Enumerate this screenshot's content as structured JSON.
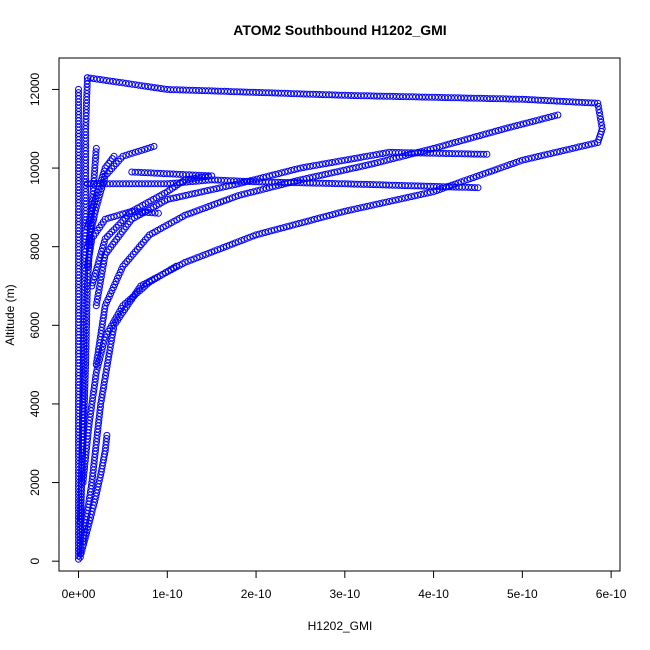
{
  "chart_data": {
    "type": "scatter",
    "title": "ATOM2 Southbound H1202_GMI",
    "xlabel": "H1202_GMI",
    "ylabel": "Altitude (m)",
    "xlim": [
      -2.2e-11,
      6.1e-10
    ],
    "ylim": [
      -250,
      12800
    ],
    "x_ticks": [
      0,
      1e-10,
      2e-10,
      3e-10,
      4e-10,
      5e-10,
      6e-10
    ],
    "x_tick_labels": [
      "0e+00",
      "1e-10",
      "2e-10",
      "3e-10",
      "4e-10",
      "5e-10",
      "6e-10"
    ],
    "y_ticks": [
      0,
      2000,
      4000,
      6000,
      8000,
      10000,
      12000
    ],
    "y_tick_labels": [
      "0",
      "2000",
      "4000",
      "6000",
      "8000",
      "10000",
      "12000"
    ],
    "marker": "open-circle",
    "series": [
      {
        "color": "#0000ff",
        "paths": [
          [
            [
              0,
              50
            ],
            [
              0,
              2000
            ],
            [
              0,
              4000
            ],
            [
              0,
              6000
            ],
            [
              0,
              8000
            ],
            [
              0,
              10000
            ],
            [
              0,
              12000
            ]
          ],
          [
            [
              2e-12,
              100
            ],
            [
              4e-12,
              3000
            ],
            [
              6e-12,
              6000
            ],
            [
              8e-12,
              9000
            ],
            [
              8e-12,
              11000
            ],
            [
              1e-11,
              12300
            ]
          ],
          [
            [
              1e-11,
              12300
            ],
            [
              1e-10,
              12000
            ],
            [
              3e-10,
              11850
            ],
            [
              5e-10,
              11750
            ],
            [
              5.85e-10,
              11650
            ],
            [
              5.9e-10,
              11000
            ],
            [
              5.85e-10,
              10650
            ],
            [
              5e-10,
              10200
            ],
            [
              4e-10,
              9400
            ],
            [
              3e-10,
              8900
            ],
            [
              2e-10,
              8300
            ],
            [
              1.2e-10,
              7600
            ],
            [
              7e-11,
              7000
            ],
            [
              4e-11,
              6000
            ],
            [
              2.5e-11,
              4000
            ],
            [
              1.5e-11,
              2000
            ],
            [
              5e-12,
              500
            ]
          ],
          [
            [
              5.4e-10,
              11350
            ],
            [
              4.8e-10,
              11000
            ],
            [
              4e-10,
              10500
            ],
            [
              3.3e-10,
              10100
            ],
            [
              2.5e-10,
              9700
            ],
            [
              1.8e-10,
              9300
            ],
            [
              1.2e-10,
              8800
            ],
            [
              8e-11,
              8300
            ],
            [
              5e-11,
              7500
            ],
            [
              3e-11,
              6500
            ],
            [
              2e-11,
              5000
            ]
          ],
          [
            [
              4.6e-10,
              10350
            ],
            [
              3.5e-10,
              10400
            ],
            [
              2.5e-10,
              10000
            ],
            [
              1.8e-10,
              9600
            ],
            [
              1e-10,
              9200
            ],
            [
              6e-11,
              8700
            ],
            [
              3e-11,
              7800
            ],
            [
              2e-11,
              6500
            ]
          ],
          [
            [
              4.5e-10,
              9500
            ],
            [
              3e-10,
              9600
            ],
            [
              2e-10,
              9650
            ],
            [
              1.5e-10,
              9700
            ],
            [
              1e-10,
              9600
            ],
            [
              5e-11,
              9600
            ],
            [
              1e-11,
              9600
            ]
          ],
          [
            [
              6e-11,
              9900
            ],
            [
              1.5e-10,
              9800
            ],
            [
              1.2e-10,
              9700
            ],
            [
              1e-10,
              9400
            ],
            [
              6e-11,
              8900
            ],
            [
              3e-11,
              8200
            ],
            [
              1.5e-11,
              7000
            ]
          ],
          [
            [
              9e-11,
              8850
            ],
            [
              6e-11,
              8900
            ],
            [
              3e-11,
              8700
            ],
            [
              1.5e-11,
              8200
            ],
            [
              1e-11,
              7500
            ]
          ],
          [
            [
              8.5e-11,
              10550
            ],
            [
              5e-11,
              10300
            ],
            [
              3e-11,
              9800
            ],
            [
              2e-11,
              9000
            ],
            [
              1e-11,
              8000
            ]
          ],
          [
            [
              4e-11,
              10300
            ],
            [
              3e-11,
              10000
            ],
            [
              2e-11,
              9300
            ],
            [
              1e-11,
              8500
            ]
          ],
          [
            [
              1.1e-10,
              7500
            ],
            [
              8e-11,
              7100
            ],
            [
              5e-11,
              6500
            ],
            [
              3e-11,
              5700
            ],
            [
              2e-11,
              4800
            ],
            [
              1.2e-11,
              3500
            ],
            [
              5e-12,
              2000
            ]
          ],
          [
            [
              2e-11,
              10500
            ],
            [
              1.5e-11,
              9000
            ],
            [
              1e-11,
              7000
            ],
            [
              8e-12,
              5000
            ],
            [
              5e-12,
              3000
            ],
            [
              2e-12,
              1000
            ]
          ],
          [
            [
              3.2e-11,
              3200
            ],
            [
              3e-11,
              2800
            ],
            [
              2.5e-11,
              2200
            ],
            [
              1.8e-11,
              1500
            ],
            [
              1e-11,
              800
            ],
            [
              3e-12,
              200
            ]
          ]
        ]
      }
    ]
  }
}
